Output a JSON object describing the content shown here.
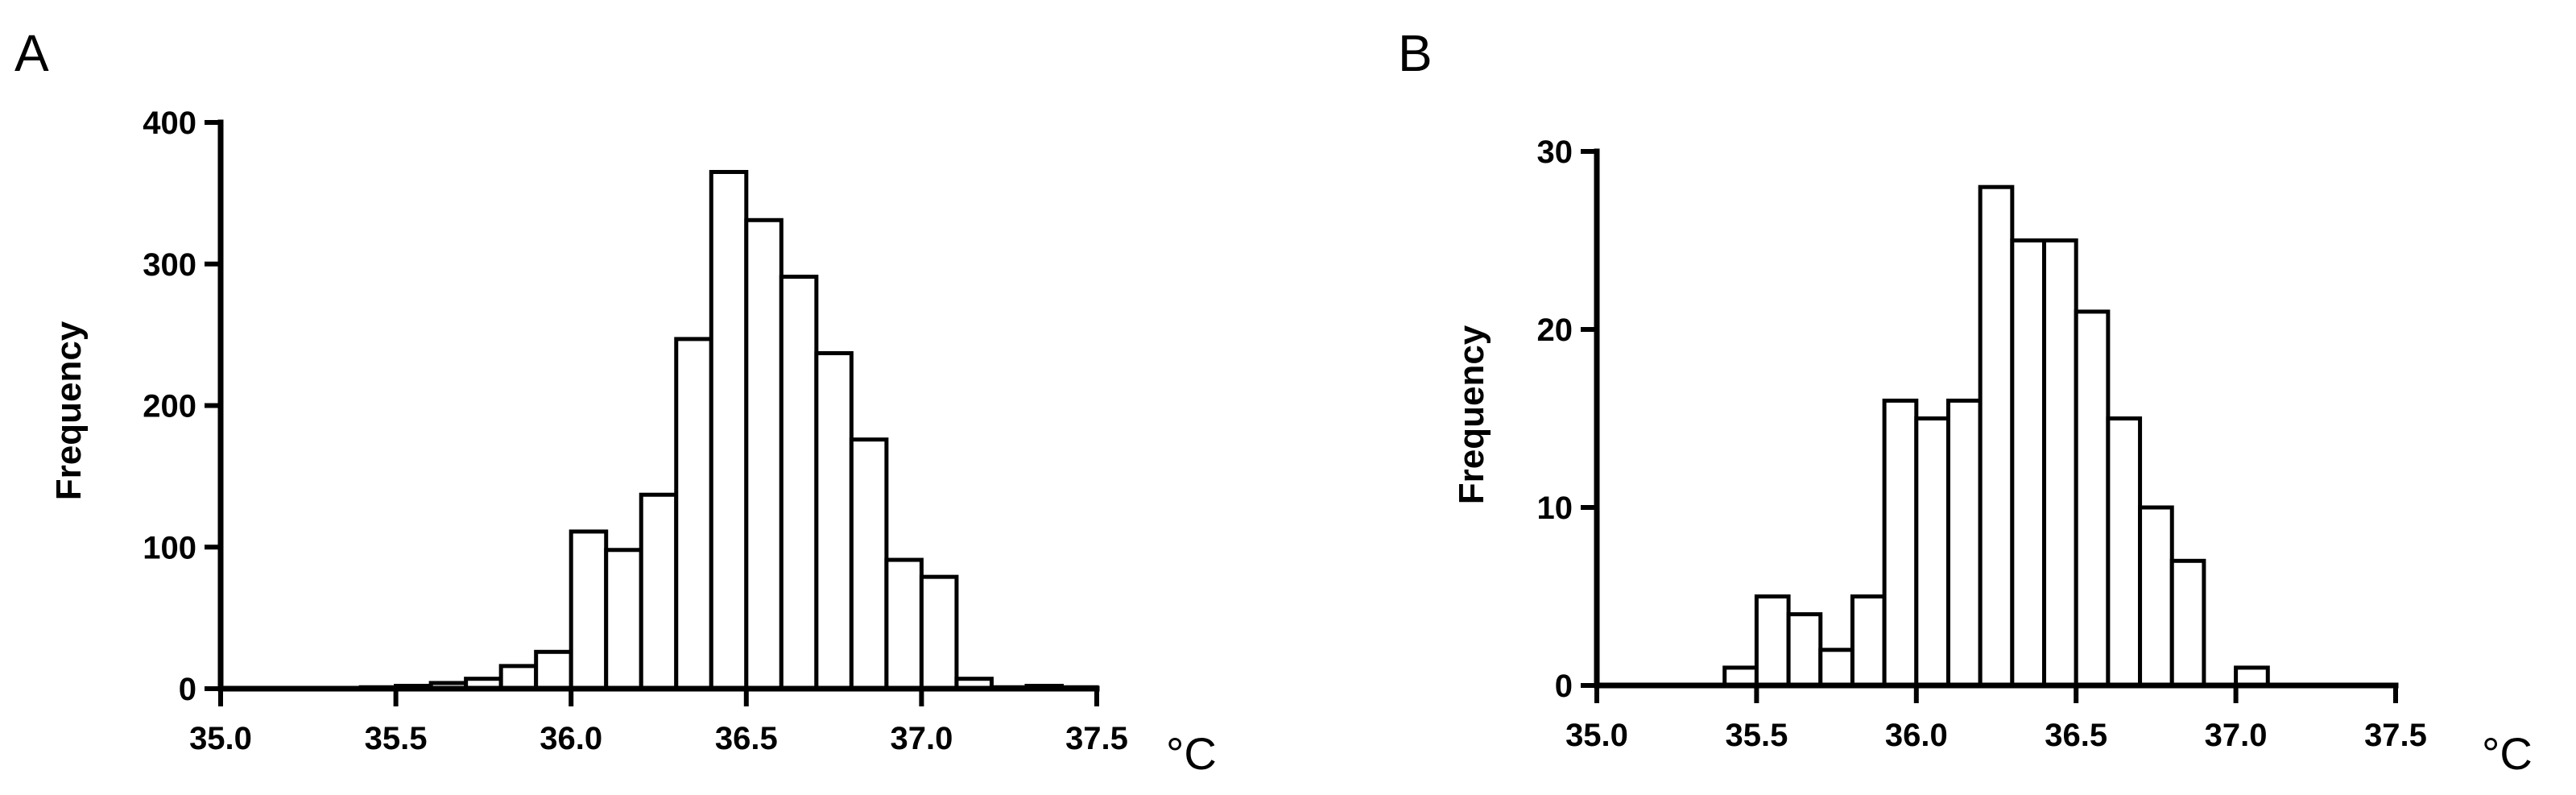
{
  "chart_data": [
    {
      "type": "bar",
      "panel_label": "A",
      "xlabel": "",
      "unit": "°C",
      "ylabel": "Frequency",
      "xlim": [
        35.0,
        37.5
      ],
      "ylim": [
        0,
        400
      ],
      "x_ticks": [
        "35.0",
        "35.5",
        "36.0",
        "36.5",
        "37.0",
        "37.5"
      ],
      "y_ticks": [
        "0",
        "100",
        "200",
        "300",
        "400"
      ],
      "bin_width": 0.1,
      "bins_start": [
        35.0,
        35.1,
        35.2,
        35.3,
        35.4,
        35.5,
        35.6,
        35.7,
        35.8,
        35.9,
        36.0,
        36.1,
        36.2,
        36.3,
        36.4,
        36.5,
        36.6,
        36.7,
        36.8,
        36.9,
        37.0,
        37.1,
        37.2,
        37.3,
        37.4
      ],
      "values": [
        0,
        0,
        0,
        0,
        1,
        2,
        4,
        7,
        16,
        26,
        111,
        98,
        137,
        247,
        365,
        331,
        291,
        237,
        176,
        91,
        79,
        7,
        1,
        2,
        1
      ],
      "grid": false,
      "legend": "none"
    },
    {
      "type": "bar",
      "panel_label": "B",
      "xlabel": "",
      "unit": "°C",
      "ylabel": "Frequency",
      "xlim": [
        35.0,
        37.5
      ],
      "ylim": [
        0,
        30
      ],
      "x_ticks": [
        "35.0",
        "35.5",
        "36.0",
        "36.5",
        "37.0",
        "37.5"
      ],
      "y_ticks": [
        "0",
        "10",
        "20",
        "30"
      ],
      "bin_width": 0.1,
      "bins_start": [
        35.4,
        35.5,
        35.6,
        35.7,
        35.8,
        35.9,
        36.0,
        36.1,
        36.2,
        36.3,
        36.4,
        36.5,
        36.6,
        36.7,
        36.8,
        36.9,
        37.0
      ],
      "values": [
        1,
        5,
        4,
        2,
        5,
        16,
        15,
        16,
        28,
        25,
        25,
        21,
        15,
        10,
        7,
        0,
        1
      ],
      "grid": false,
      "legend": "none"
    }
  ]
}
